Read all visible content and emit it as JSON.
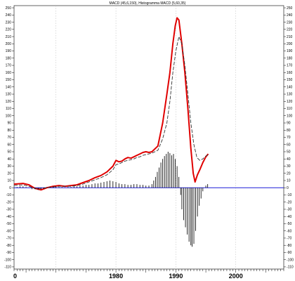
{
  "chart_data": {
    "type": "line",
    "title": "MACD (45,6,150), Histogramma MACD (5,60,35)",
    "xlabel": "",
    "ylabel": "",
    "xlim": [
      1963,
      2008
    ],
    "ylim": [
      -113,
      253
    ],
    "y_ticks": [
      -110,
      -100,
      -90,
      -80,
      -70,
      -60,
      -50,
      -40,
      -30,
      -20,
      -10,
      0,
      10,
      20,
      30,
      40,
      50,
      60,
      70,
      80,
      90,
      100,
      110,
      120,
      130,
      140,
      150,
      160,
      170,
      180,
      190,
      200,
      210,
      220,
      230,
      240,
      250
    ],
    "y_tick_labels": [
      "-110",
      "-100",
      "-90",
      "-80",
      "-70",
      "-60",
      "-50",
      "-40",
      "-30",
      "-20",
      "-10",
      "0",
      "10",
      "20",
      "30",
      "40",
      "50",
      "60",
      "70",
      "80",
      "90",
      "100",
      "110",
      "120",
      "130",
      "140",
      "150",
      "160",
      "170",
      "180",
      "190",
      "200",
      "210",
      "220",
      "230",
      "240",
      "250"
    ],
    "x_tick_labels": [
      {
        "year": 1963,
        "label": "0"
      },
      {
        "year": 1980,
        "label": "1980"
      },
      {
        "year": 1990,
        "label": "1990"
      },
      {
        "year": 2000,
        "label": "2000"
      }
    ],
    "vertical_gridlines_at": [
      1970,
      1980,
      1990,
      2000
    ],
    "grid": "vertical dashed",
    "baseline": 0,
    "series": [
      {
        "kind": "line",
        "style": "solid-thick",
        "color": "#e00000",
        "points": [
          [
            1963.0,
            5
          ],
          [
            1964.5,
            6
          ],
          [
            1965.5,
            4
          ],
          [
            1966.5,
            -1
          ],
          [
            1967.5,
            -3
          ],
          [
            1968.5,
            0
          ],
          [
            1969.5,
            2
          ],
          [
            1970.5,
            3
          ],
          [
            1971.5,
            2
          ],
          [
            1972.5,
            3
          ],
          [
            1973.5,
            4
          ],
          [
            1974.5,
            7
          ],
          [
            1975.5,
            10
          ],
          [
            1976.5,
            14
          ],
          [
            1977.5,
            17
          ],
          [
            1978.5,
            22
          ],
          [
            1979.5,
            30
          ],
          [
            1980.0,
            38
          ],
          [
            1980.5,
            36
          ],
          [
            1981.0,
            37
          ],
          [
            1981.5,
            40
          ],
          [
            1982.0,
            42
          ],
          [
            1982.5,
            41
          ],
          [
            1983.0,
            43
          ],
          [
            1983.5,
            45
          ],
          [
            1984.0,
            47
          ],
          [
            1984.5,
            49
          ],
          [
            1985.0,
            50
          ],
          [
            1985.5,
            49
          ],
          [
            1986.0,
            50
          ],
          [
            1987.0,
            58
          ],
          [
            1987.8,
            90
          ],
          [
            1988.5,
            130
          ],
          [
            1989.0,
            160
          ],
          [
            1989.5,
            200
          ],
          [
            1989.9,
            225
          ],
          [
            1990.2,
            236
          ],
          [
            1990.5,
            233
          ],
          [
            1991.0,
            200
          ],
          [
            1991.5,
            160
          ],
          [
            1992.0,
            110
          ],
          [
            1992.5,
            55
          ],
          [
            1992.9,
            20
          ],
          [
            1993.2,
            8
          ],
          [
            1993.6,
            18
          ],
          [
            1994.0,
            25
          ],
          [
            1994.5,
            35
          ],
          [
            1995.0,
            43
          ],
          [
            1995.4,
            47
          ]
        ]
      },
      {
        "kind": "line",
        "style": "dashed",
        "color": "#333333",
        "points": [
          [
            1963.0,
            3
          ],
          [
            1964.5,
            4
          ],
          [
            1965.5,
            2
          ],
          [
            1966.5,
            -1
          ],
          [
            1967.5,
            -1
          ],
          [
            1968.5,
            0
          ],
          [
            1969.5,
            1
          ],
          [
            1970.5,
            2
          ],
          [
            1971.5,
            2
          ],
          [
            1972.5,
            2
          ],
          [
            1973.5,
            3
          ],
          [
            1974.5,
            5
          ],
          [
            1975.5,
            8
          ],
          [
            1976.5,
            11
          ],
          [
            1977.5,
            14
          ],
          [
            1978.5,
            18
          ],
          [
            1979.5,
            25
          ],
          [
            1980.0,
            32
          ],
          [
            1980.5,
            33
          ],
          [
            1981.0,
            35
          ],
          [
            1981.5,
            37
          ],
          [
            1982.0,
            38
          ],
          [
            1982.5,
            39
          ],
          [
            1983.0,
            40
          ],
          [
            1983.5,
            42
          ],
          [
            1984.0,
            43
          ],
          [
            1984.5,
            45
          ],
          [
            1985.0,
            46
          ],
          [
            1985.5,
            47
          ],
          [
            1986.0,
            48
          ],
          [
            1987.0,
            52
          ],
          [
            1987.8,
            68
          ],
          [
            1988.5,
            90
          ],
          [
            1989.0,
            120
          ],
          [
            1989.5,
            160
          ],
          [
            1990.0,
            190
          ],
          [
            1990.5,
            210
          ],
          [
            1991.0,
            200
          ],
          [
            1991.5,
            170
          ],
          [
            1992.0,
            130
          ],
          [
            1992.5,
            90
          ],
          [
            1993.0,
            60
          ],
          [
            1993.5,
            42
          ],
          [
            1994.0,
            38
          ],
          [
            1994.5,
            40
          ],
          [
            1995.0,
            44
          ],
          [
            1995.4,
            46
          ]
        ]
      },
      {
        "kind": "histogram",
        "color": "#111111",
        "points": [
          [
            1963.5,
            1
          ],
          [
            1964.0,
            2
          ],
          [
            1964.5,
            2
          ],
          [
            1965.0,
            1
          ],
          [
            1965.5,
            0
          ],
          [
            1966.0,
            -2
          ],
          [
            1966.5,
            -2
          ],
          [
            1967.0,
            -3
          ],
          [
            1967.5,
            -2
          ],
          [
            1968.0,
            -1
          ],
          [
            1968.5,
            1
          ],
          [
            1969.0,
            1
          ],
          [
            1969.5,
            2
          ],
          [
            1970.0,
            2
          ],
          [
            1970.5,
            1
          ],
          [
            1971.0,
            1
          ],
          [
            1971.5,
            0
          ],
          [
            1972.0,
            1
          ],
          [
            1972.5,
            1
          ],
          [
            1973.0,
            2
          ],
          [
            1973.5,
            2
          ],
          [
            1974.0,
            3
          ],
          [
            1974.5,
            3
          ],
          [
            1975.0,
            4
          ],
          [
            1975.5,
            4
          ],
          [
            1976.0,
            5
          ],
          [
            1976.5,
            6
          ],
          [
            1977.0,
            6
          ],
          [
            1977.5,
            7
          ],
          [
            1978.0,
            8
          ],
          [
            1978.5,
            9
          ],
          [
            1979.0,
            10
          ],
          [
            1979.5,
            9
          ],
          [
            1980.0,
            8
          ],
          [
            1980.5,
            6
          ],
          [
            1981.0,
            5
          ],
          [
            1981.5,
            5
          ],
          [
            1982.0,
            4
          ],
          [
            1982.5,
            4
          ],
          [
            1983.0,
            5
          ],
          [
            1983.5,
            5
          ],
          [
            1984.0,
            4
          ],
          [
            1984.5,
            4
          ],
          [
            1985.0,
            3
          ],
          [
            1985.5,
            3
          ],
          [
            1986.0,
            5
          ],
          [
            1986.3,
            10
          ],
          [
            1986.6,
            15
          ],
          [
            1986.9,
            22
          ],
          [
            1987.2,
            28
          ],
          [
            1987.5,
            35
          ],
          [
            1987.8,
            40
          ],
          [
            1988.1,
            44
          ],
          [
            1988.4,
            47
          ],
          [
            1988.7,
            50
          ],
          [
            1989.0,
            48
          ],
          [
            1989.3,
            45
          ],
          [
            1989.6,
            47
          ],
          [
            1989.9,
            40
          ],
          [
            1990.2,
            30
          ],
          [
            1990.5,
            15
          ],
          [
            1990.8,
            -10
          ],
          [
            1991.0,
            -30
          ],
          [
            1991.3,
            -45
          ],
          [
            1991.6,
            -55
          ],
          [
            1991.9,
            -65
          ],
          [
            1992.2,
            -75
          ],
          [
            1992.5,
            -80
          ],
          [
            1992.7,
            -82
          ],
          [
            1993.0,
            -78
          ],
          [
            1993.3,
            -60
          ],
          [
            1993.6,
            -40
          ],
          [
            1993.9,
            -25
          ],
          [
            1994.2,
            -15
          ],
          [
            1994.5,
            -5
          ],
          [
            1995.0,
            3
          ],
          [
            1995.3,
            5
          ]
        ]
      }
    ]
  }
}
